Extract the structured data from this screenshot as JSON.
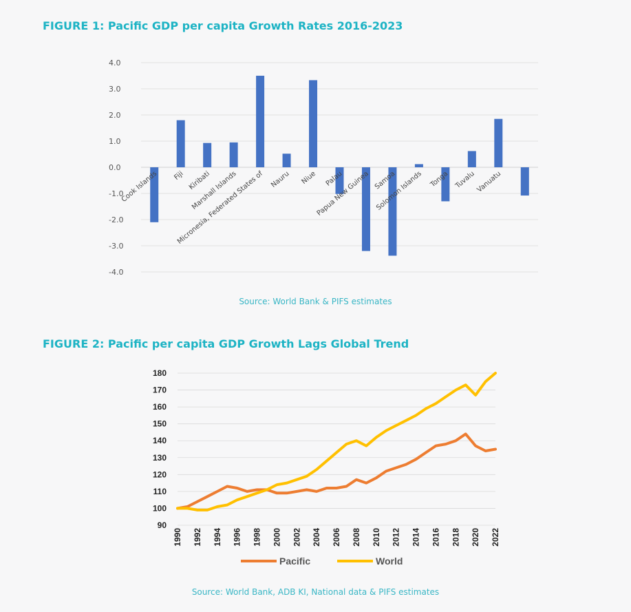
{
  "figures": [
    {
      "title": "FIGURE 1: Pacific GDP per capita Growth Rates 2016-2023",
      "source": "Source: World Bank & PIFS estimates"
    },
    {
      "title": "FIGURE 2:  Pacific per capita GDP Growth Lags Global Trend",
      "source": "Source: World Bank, ADB KI, National data & PIFS estimates"
    }
  ],
  "colors": {
    "title": "#1cb3c4",
    "bar": "#4472c4",
    "pacific": "#ed7d31",
    "world": "#ffc000",
    "grid": "#d9d9d9"
  },
  "chart_data": [
    {
      "type": "bar",
      "title": "FIGURE 1: Pacific GDP per capita Growth Rates 2016-2023",
      "categories": [
        "Cook Islands",
        "Fiji",
        "Kiribati",
        "Marshall Islands",
        "Micronesia, Federated States of",
        "Nauru",
        "Niue",
        "Palau",
        "Papua New Guinea",
        "Samoa",
        "Solomon Islands",
        "Tonga",
        "Tuvalu",
        "Vanuatu",
        ""
      ],
      "category_labels": [
        "Cook Islands",
        "Fiji",
        "Kiribati",
        "Marshall Islands",
        "Micronesia, Federated States of",
        "Nauru",
        "Niue",
        "Palau",
        "Papua New Guinea",
        "Samoa",
        "Solomon Islands",
        "Tonga",
        "Tuvalu",
        "Vanuatu"
      ],
      "values": [
        -2.1,
        1.8,
        0.93,
        0.95,
        3.5,
        0.52,
        3.33,
        -1.02,
        -3.2,
        -3.38,
        0.12,
        -1.3,
        0.62,
        1.85,
        -1.08
      ],
      "yticks": [
        "4.0",
        "3.0",
        "2.0",
        "1.0",
        "0.0",
        "-1.0",
        "-2.0",
        "-3.0",
        "-4.0"
      ],
      "ylim": [
        -4,
        4
      ],
      "xlabel": "",
      "ylabel": "",
      "grid": true
    },
    {
      "type": "line",
      "title": "FIGURE 2:  Pacific per capita GDP Growth Lags Global Trend",
      "x": [
        1990,
        1991,
        1992,
        1993,
        1994,
        1995,
        1996,
        1997,
        1998,
        1999,
        2000,
        2001,
        2002,
        2003,
        2004,
        2005,
        2006,
        2007,
        2008,
        2009,
        2010,
        2011,
        2012,
        2013,
        2014,
        2015,
        2016,
        2017,
        2018,
        2019,
        2020,
        2021,
        2022
      ],
      "xticks": [
        "1990",
        "1992",
        "1994",
        "1996",
        "1998",
        "2000",
        "2002",
        "2004",
        "2006",
        "2008",
        "2010",
        "2012",
        "2014",
        "2016",
        "2018",
        "2020",
        "2022"
      ],
      "yticks": [
        "180",
        "170",
        "160",
        "150",
        "140",
        "130",
        "120",
        "110",
        "100",
        "90"
      ],
      "ylim": [
        90,
        180
      ],
      "legend_position": "bottom",
      "series": [
        {
          "name": "Pacific",
          "values": [
            100,
            101,
            104,
            107,
            110,
            113,
            112,
            110,
            111,
            111,
            109,
            109,
            110,
            111,
            110,
            112,
            112,
            113,
            117,
            115,
            118,
            122,
            124,
            126,
            129,
            133,
            137,
            138,
            140,
            144,
            137,
            134,
            135
          ]
        },
        {
          "name": "World",
          "values": [
            100,
            100,
            99,
            99,
            101,
            102,
            105,
            107,
            109,
            111,
            114,
            115,
            117,
            119,
            123,
            128,
            133,
            138,
            140,
            137,
            142,
            146,
            149,
            152,
            155,
            159,
            162,
            166,
            170,
            173,
            167,
            175,
            180
          ]
        }
      ]
    }
  ]
}
